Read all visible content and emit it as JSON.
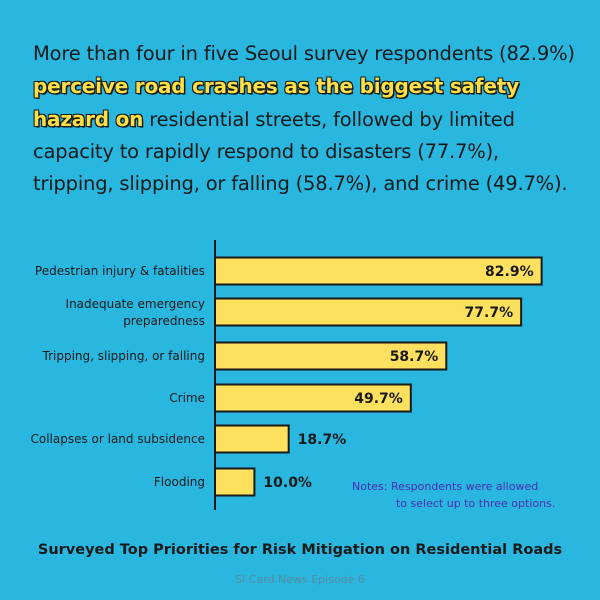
{
  "headline": {
    "part1": "More than four in five Seoul survey respondents (82.9%) ",
    "highlight": "perceive road crashes as the biggest safety hazard on",
    "part2": " residential streets, followed by limited capacity to rapidly respond to disasters (77.7%), tripping, slipping, or falling (58.7%), and crime (49.7%)."
  },
  "colors": {
    "background": "#29b6df",
    "bar_fill": "#fde05e",
    "bar_stroke": "#1a1a1a",
    "highlight": "#fde047",
    "notes": "#4a2db5"
  },
  "chart_data": {
    "type": "bar",
    "orientation": "horizontal",
    "title": "Surveyed Top Priorities for Risk Mitigation on Residential Roads",
    "categories": [
      "Pedestrian injury & fatalities",
      "Inadequate emergency preparedness",
      "Tripping, slipping, or falling",
      "Crime",
      "Collapses or land subsidence",
      "Flooding"
    ],
    "value_labels": [
      "82.9%",
      "77.7%",
      "58.7%",
      "49.7%",
      "18.7%",
      "10.0%"
    ],
    "values": [
      82.9,
      77.7,
      58.7,
      49.7,
      18.7,
      10.0
    ],
    "xlim": [
      0,
      100
    ]
  },
  "notes": {
    "line1": "Notes: Respondents were allowed",
    "line2": "to select up to three options."
  },
  "footer": "SI Card News Episode 6"
}
